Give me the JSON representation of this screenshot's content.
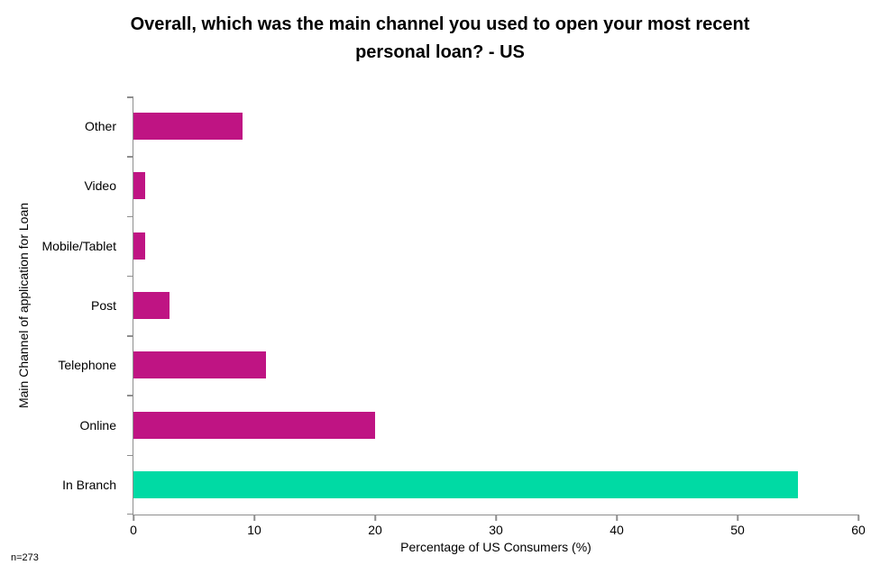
{
  "header": {
    "title_line1": "Overall, which was the main channel you used to open your most recent",
    "title_line2": "personal loan? - US"
  },
  "chart_data": {
    "type": "bar",
    "orientation": "horizontal",
    "title": "Overall, which was the main channel you used to open your most recent personal loan? - US",
    "categories": [
      "Other",
      "Video",
      "Mobile/Tablet",
      "Post",
      "Telephone",
      "Online",
      "In Branch"
    ],
    "values": [
      9,
      1,
      1,
      3,
      11,
      20,
      55
    ],
    "xlabel": "Percentage of US Consumers (%)",
    "ylabel": "Main Channel of application for Loan",
    "xlim": [
      0,
      60
    ],
    "xticks": [
      0,
      10,
      20,
      30,
      40,
      50,
      60
    ],
    "grid": false,
    "legend": false,
    "annotation": "n=273",
    "bar_colors": [
      "#BF1483",
      "#BF1483",
      "#BF1483",
      "#BF1483",
      "#BF1483",
      "#BF1483",
      "#00DAA4"
    ],
    "colors": {
      "magenta": "#BF1483",
      "teal": "#00DAA4",
      "axis_gray": "#8E8E8E",
      "background": "#FFFFFF"
    }
  }
}
